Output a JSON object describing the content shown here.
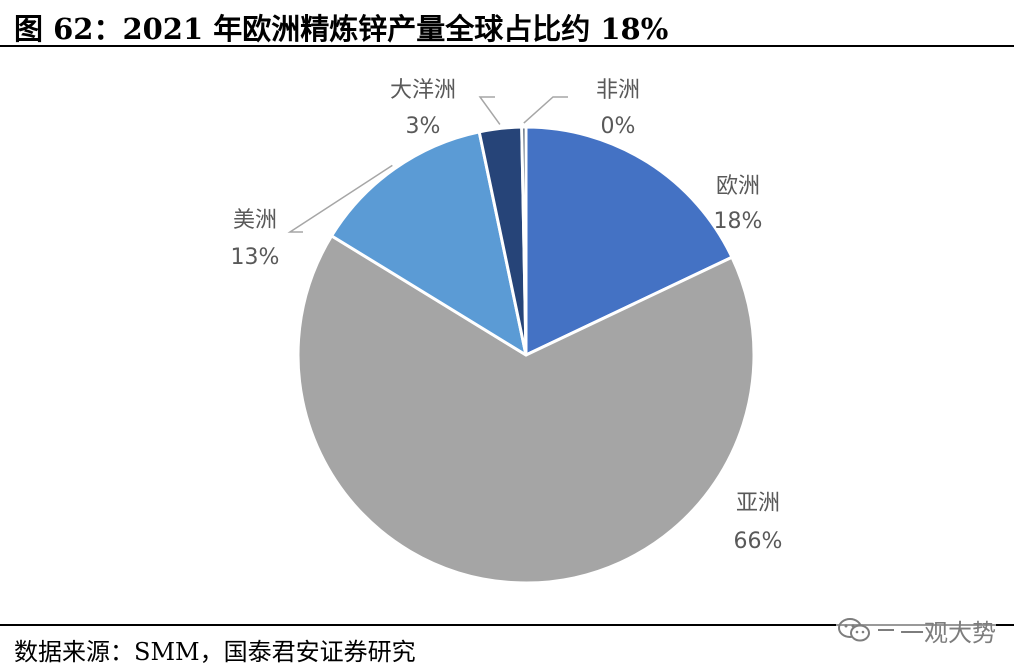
{
  "figure": {
    "title": "图 62：2021 年欧洲精炼锌产量全球占比约 18%",
    "source": "数据来源：SMM，国泰君安证券研究",
    "watermark": "一观大势",
    "watermark_icon": "wechat-icon"
  },
  "chart_data": {
    "type": "pie",
    "start_angle_deg": 0,
    "direction": "clockwise",
    "slices": [
      {
        "label": "欧洲",
        "value": 18,
        "display": "18%",
        "color": "#4472C4",
        "leader_line": false
      },
      {
        "label": "亚洲",
        "value": 66,
        "display": "66%",
        "color": "#A5A5A5",
        "leader_line": false
      },
      {
        "label": "美洲",
        "value": 13,
        "display": "13%",
        "color": "#5B9BD5",
        "leader_line": true
      },
      {
        "label": "大洋洲",
        "value": 3,
        "display": "3%",
        "color": "#264478",
        "leader_line": true
      },
      {
        "label": "非洲",
        "value": 0.3,
        "display": "0%",
        "color": "#44546A",
        "leader_line": true
      }
    ],
    "slice_border_color": "#ffffff",
    "leader_color": "#A6A6A6"
  }
}
